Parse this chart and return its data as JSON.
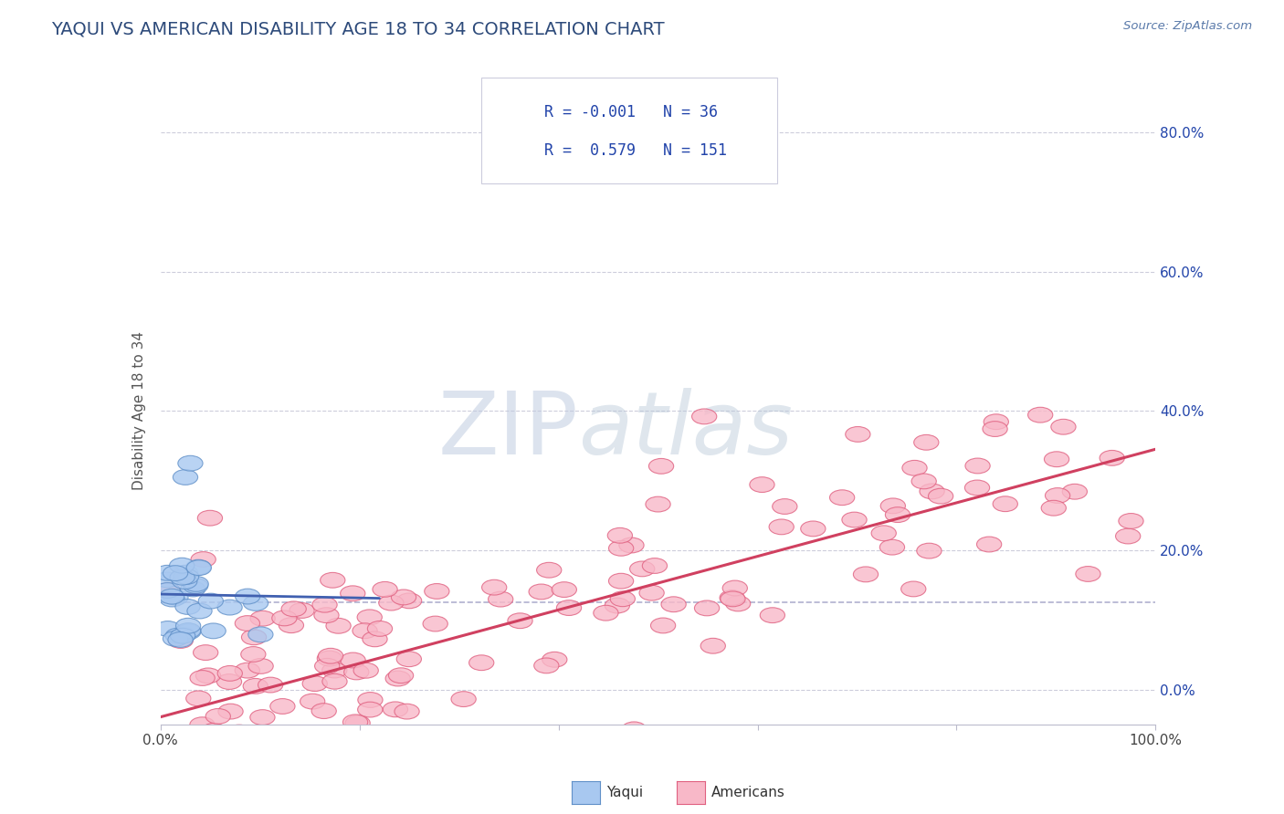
{
  "title": "YAQUI VS AMERICAN DISABILITY AGE 18 TO 34 CORRELATION CHART",
  "source_text": "Source: ZipAtlas.com",
  "ylabel": "Disability Age 18 to 34",
  "xlim": [
    0.0,
    1.0
  ],
  "ylim": [
    -0.05,
    0.85
  ],
  "background_color": "#ffffff",
  "grid_color": "#c8c8d8",
  "title_color": "#2d4a7a",
  "source_color": "#5a7aaa",
  "yaqui_fill": "#a8c8f0",
  "yaqui_edge": "#6090c8",
  "american_fill": "#f8b8c8",
  "american_edge": "#e06080",
  "yaqui_line_color": "#4060b0",
  "american_line_color": "#d04060",
  "legend_text_color": "#2244aa",
  "ref_line_color": "#9090bb",
  "R_yaqui": -0.001,
  "N_yaqui": 36,
  "R_american": 0.579,
  "N_american": 151,
  "watermark_zip_color": "#c8d4e8",
  "watermark_atlas_color": "#b0c8e0",
  "ytick_vals": [
    0.0,
    0.2,
    0.4,
    0.6,
    0.8
  ],
  "ytick_labels": [
    "0.0%",
    "20.0%",
    "40.0%",
    "60.0%",
    "80.0%"
  ],
  "ref_line_y": 0.125
}
